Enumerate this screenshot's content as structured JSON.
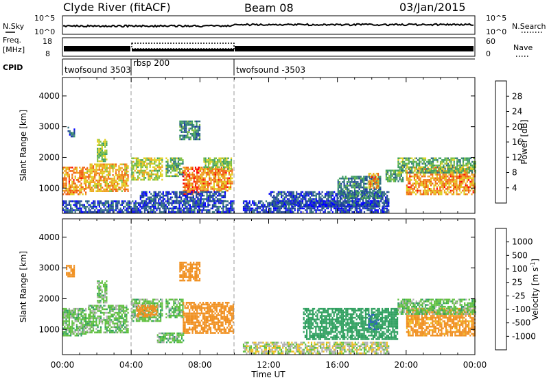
{
  "header": {
    "station": "Clyde River (fitACF)",
    "beam": "Beam 08",
    "date": "03/Jan/2015"
  },
  "top_panels": {
    "nsky_label": "N.Sky",
    "nsky_ticks": [
      "10^5",
      "10^0"
    ],
    "nsearch_label": "N.Search",
    "nsearch_ticks": [
      "10^5",
      "10^0"
    ],
    "freq_label_1": "Freq.",
    "freq_label_2": "[MHz]",
    "freq_ticks": [
      "18",
      "8"
    ],
    "nave_label": "Nave",
    "nave_ticks": [
      "60",
      "0"
    ],
    "cpid_label": "CPID",
    "cpid_segments": [
      {
        "label": "twofsound 3503",
        "start_h": 0,
        "end_h": 4
      },
      {
        "label": "rbsp 200",
        "start_h": 4,
        "end_h": 10
      },
      {
        "label": "twofsound -3503",
        "start_h": 10,
        "end_h": 24
      }
    ]
  },
  "x_axis": {
    "label": "Time UT",
    "ticks": [
      "00:00",
      "04:00",
      "08:00",
      "12:00",
      "16:00",
      "20:00",
      "00:00"
    ],
    "range_hours": [
      0,
      24
    ]
  },
  "chart_data": [
    {
      "type": "heatmap",
      "title": "",
      "xlabel": "Time UT",
      "ylabel": "Slant Range [km]",
      "y_ticks": [
        "1000",
        "2000",
        "3000",
        "4000"
      ],
      "ylim": [
        180,
        4600
      ],
      "colorbar_label": "Power [dB]",
      "colorbar_ticks": [
        "28",
        "24",
        "20",
        "16",
        "12",
        "8",
        "4"
      ],
      "colorscale": [
        "#0000ff",
        "#1f3f9f",
        "#2f6f7f",
        "#3fa05f",
        "#7fc040",
        "#e0d020",
        "#f0a020",
        "#f06010",
        "#ff0000"
      ],
      "regions": [
        {
          "t0": 0.0,
          "t1": 1.4,
          "r0": 800,
          "r1": 1700,
          "value": 24
        },
        {
          "t0": 1.4,
          "t1": 3.8,
          "r0": 900,
          "r1": 1800,
          "value": 22
        },
        {
          "t0": 2.0,
          "t1": 2.6,
          "r0": 1900,
          "r1": 2600,
          "value": 16
        },
        {
          "t0": 0.3,
          "t1": 0.7,
          "r0": 2700,
          "r1": 3000,
          "value": 8
        },
        {
          "t0": 4.0,
          "t1": 5.8,
          "r0": 1300,
          "r1": 2000,
          "value": 18
        },
        {
          "t0": 6.0,
          "t1": 7.0,
          "r0": 1400,
          "r1": 2000,
          "value": 14
        },
        {
          "t0": 7.0,
          "t1": 7.9,
          "r0": 800,
          "r1": 1700,
          "value": 26
        },
        {
          "t0": 7.9,
          "t1": 9.9,
          "r0": 900,
          "r1": 1700,
          "value": 24
        },
        {
          "t0": 8.2,
          "t1": 9.8,
          "r0": 1600,
          "r1": 2000,
          "value": 16
        },
        {
          "t0": 4.5,
          "t1": 9.5,
          "r0": 600,
          "r1": 900,
          "value": 6
        },
        {
          "t0": 6.8,
          "t1": 8.0,
          "r0": 2600,
          "r1": 3200,
          "value": 10
        },
        {
          "t0": 10.5,
          "t1": 19.0,
          "r0": 250,
          "r1": 600,
          "value": 5
        },
        {
          "t0": 12.0,
          "t1": 19.0,
          "r0": 400,
          "r1": 900,
          "value": 6
        },
        {
          "t0": 16.0,
          "t1": 18.5,
          "r0": 700,
          "r1": 1400,
          "value": 10
        },
        {
          "t0": 17.8,
          "t1": 18.4,
          "r0": 1000,
          "r1": 1500,
          "value": 24
        },
        {
          "t0": 18.8,
          "t1": 19.8,
          "r0": 1200,
          "r1": 1600,
          "value": 12
        },
        {
          "t0": 20.0,
          "t1": 24.0,
          "r0": 800,
          "r1": 1700,
          "value": 24
        },
        {
          "t0": 19.5,
          "t1": 24.0,
          "r0": 1500,
          "r1": 2000,
          "value": 14
        },
        {
          "t0": 0.0,
          "t1": 10.0,
          "r0": 250,
          "r1": 600,
          "value": 6
        }
      ]
    },
    {
      "type": "heatmap",
      "title": "",
      "xlabel": "Time UT",
      "ylabel": "Slant Range [km]",
      "y_ticks": [
        "1000",
        "2000",
        "3000",
        "4000"
      ],
      "ylim": [
        180,
        4600
      ],
      "colorbar_label": "Velocity [m s^-1]",
      "colorbar_ticks": [
        "1000",
        "500",
        "100",
        "25",
        "-25",
        "-100",
        "-500",
        "-1000"
      ],
      "colorscale": [
        "#2030a0",
        "#3060c0",
        "#30a060",
        "#60c040",
        "#b0b0b0",
        "#f0c020",
        "#f09020",
        "#f05020",
        "#ff0000"
      ],
      "regions": [
        {
          "t0": 0.0,
          "t1": 1.4,
          "r0": 800,
          "r1": 1700,
          "value": 60
        },
        {
          "t0": 1.4,
          "t1": 3.8,
          "r0": 900,
          "r1": 1800,
          "value": 60
        },
        {
          "t0": 2.0,
          "t1": 2.6,
          "r0": 1900,
          "r1": 2600,
          "value": 60
        },
        {
          "t0": 0.2,
          "t1": 0.7,
          "r0": 2700,
          "r1": 3100,
          "value": -200
        },
        {
          "t0": 4.0,
          "t1": 5.8,
          "r0": 1300,
          "r1": 2000,
          "value": 60
        },
        {
          "t0": 4.3,
          "t1": 5.5,
          "r0": 1400,
          "r1": 1800,
          "value": -200
        },
        {
          "t0": 6.0,
          "t1": 7.0,
          "r0": 1400,
          "r1": 2000,
          "value": 60
        },
        {
          "t0": 7.0,
          "t1": 9.9,
          "r0": 900,
          "r1": 1900,
          "value": -200
        },
        {
          "t0": 6.8,
          "t1": 8.0,
          "r0": 2600,
          "r1": 3200,
          "value": -200
        },
        {
          "t0": 5.5,
          "t1": 7.0,
          "r0": 600,
          "r1": 900,
          "value": 60
        },
        {
          "t0": 10.5,
          "t1": 19.0,
          "r0": 250,
          "r1": 600,
          "value": 0
        },
        {
          "t0": 14.0,
          "t1": 19.5,
          "r0": 700,
          "r1": 1700,
          "value": 300
        },
        {
          "t0": 17.8,
          "t1": 18.4,
          "r0": 1000,
          "r1": 1500,
          "value": 500
        },
        {
          "t0": 20.0,
          "t1": 24.0,
          "r0": 800,
          "r1": 1700,
          "value": -150
        },
        {
          "t0": 19.5,
          "t1": 24.0,
          "r0": 1500,
          "r1": 2000,
          "value": 60
        }
      ]
    }
  ]
}
